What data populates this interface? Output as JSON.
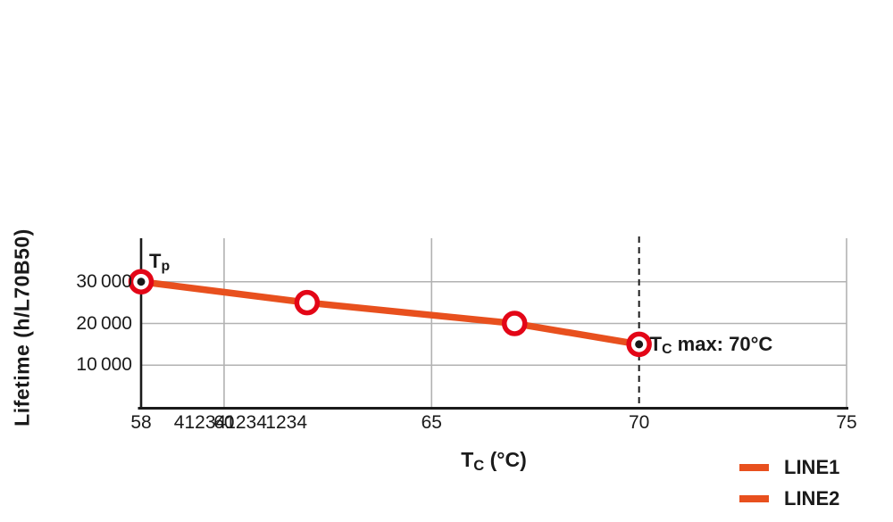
{
  "chart_data": {
    "type": "line",
    "xlabel_main": "T",
    "xlabel_sub": "C",
    "xlabel_rest": " (°C)",
    "ylabel": "Lifetime (h/L70B50)",
    "xlim": [
      58,
      75
    ],
    "ylim": [
      0,
      40000
    ],
    "grid": true,
    "grid_color": "#b2b2b2",
    "axis_color": "#1a1a1a",
    "x_ticks": [
      {
        "text": "58",
        "value": 58
      },
      {
        "text": "41234",
        "value": 59.42
      },
      {
        "text": "60",
        "value": 60
      },
      {
        "text": "1234",
        "value": 60.53
      },
      {
        "text": "1234",
        "value": 61.5
      },
      {
        "text": "65",
        "value": 65
      },
      {
        "text": "70",
        "value": 70
      },
      {
        "text": "75",
        "value": 75
      }
    ],
    "y_ticks": [
      {
        "text": "10 000",
        "value": 10000
      },
      {
        "text": "20 000",
        "value": 20000
      },
      {
        "text": "30 000",
        "value": 30000
      }
    ],
    "x_gridlines": [
      60,
      65,
      75
    ],
    "y_gridlines": [
      10000,
      20000,
      30000
    ],
    "series": [
      {
        "name": "LINE1",
        "color": "#e8501e",
        "x": [
          58,
          62,
          67,
          70
        ],
        "y": [
          30000,
          25000,
          20000,
          15000
        ]
      }
    ],
    "markers": {
      "ring_color": "#e30617",
      "points": [
        {
          "x": 58,
          "y": 30000,
          "dot": true
        },
        {
          "x": 62,
          "y": 25000,
          "dot": false
        },
        {
          "x": 67,
          "y": 20000,
          "dot": false
        },
        {
          "x": 70,
          "y": 15000,
          "dot": true
        }
      ]
    },
    "reference_line": {
      "x": 70,
      "style": "dashed",
      "color": "#1a1a1a"
    },
    "annotations": [
      {
        "main": "T",
        "sub": "p",
        "rest": "",
        "x": 58,
        "y": 30000
      },
      {
        "main": "T",
        "sub": "C",
        "rest": " max: 70°C",
        "x": 70,
        "y": 15000
      }
    ]
  },
  "legend": {
    "entries": [
      {
        "label": "LINE1",
        "color": "#e8501e"
      },
      {
        "label": "LINE2",
        "color": "#e8501e"
      }
    ]
  }
}
